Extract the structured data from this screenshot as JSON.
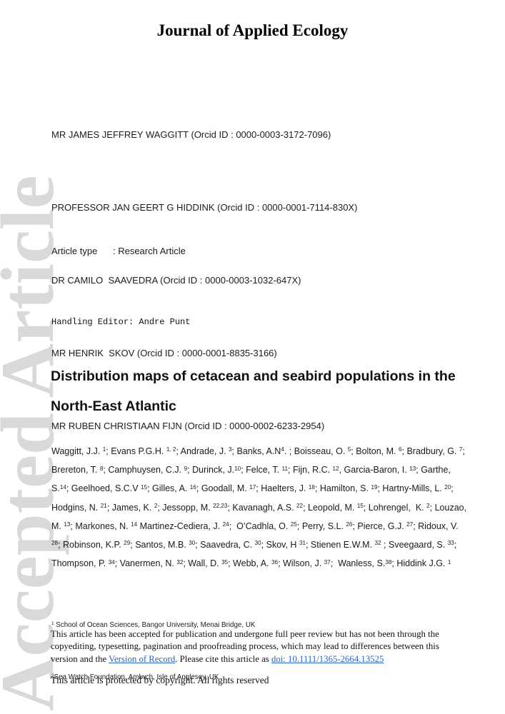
{
  "colors": {
    "link": "#2a64c5",
    "watermark": "#d9d9d9"
  },
  "watermark_text": "Accepted Article",
  "journal_title": "Journal of Applied Ecology",
  "orcid_lines": [
    "MR JAMES JEFFREY WAGGITT (Orcid ID : 0000-0003-3172-7096)",
    "PROFESSOR JAN GEERT G HIDDINK (Orcid ID : 0000-0001-7114-830X)",
    "DR CAMILO  SAAVEDRA (Orcid ID : 0000-0003-1032-647X)",
    "MR HENRIK  SKOV (Orcid ID : 0000-0001-8835-3166)",
    "MR RUBEN CHRISTIAAN FIJN (Orcid ID : 0000-0002-6233-2954)"
  ],
  "meta": {
    "article_type_line": "Article type      : Research Article",
    "handling_editor_line": "Handling Editor: Andre Punt"
  },
  "article": {
    "title": "Distribution maps of cetacean and seabird populations in the North-East Atlantic",
    "authors_segments": [
      {
        "t": "Waggitt, J.J. "
      },
      {
        "sup": "1"
      },
      {
        "t": "; Evans P.G.H. "
      },
      {
        "sup": "1, 2"
      },
      {
        "t": "; Andrade, J. "
      },
      {
        "sup": "3"
      },
      {
        "t": "; Banks, A.N"
      },
      {
        "sup": "4"
      },
      {
        "t": ". ; Boisseau, O. "
      },
      {
        "sup": "5"
      },
      {
        "t": "; Bolton, M. "
      },
      {
        "sup": "6"
      },
      {
        "t": "; Bradbury, G. "
      },
      {
        "sup": "7"
      },
      {
        "t": "; Brereton, T. "
      },
      {
        "sup": "8"
      },
      {
        "t": "; Camphuysen, C.J. "
      },
      {
        "sup": "9"
      },
      {
        "t": "; Durinck, J."
      },
      {
        "sup": "10"
      },
      {
        "t": "; Felce, T. "
      },
      {
        "sup": "11"
      },
      {
        "t": "; Fijn, R.C. "
      },
      {
        "sup": "12"
      },
      {
        "t": ", Garcia-Baron, I. "
      },
      {
        "sup": "13"
      },
      {
        "t": "; Garthe, S."
      },
      {
        "sup": "14"
      },
      {
        "t": "; Geelhoed, S.C.V "
      },
      {
        "sup": "15"
      },
      {
        "t": "; Gilles, A. "
      },
      {
        "sup": "16"
      },
      {
        "t": "; Goodall, M. "
      },
      {
        "sup": "17"
      },
      {
        "t": "; Haelters, J. "
      },
      {
        "sup": "18"
      },
      {
        "t": "; Hamilton, S. "
      },
      {
        "sup": "19"
      },
      {
        "t": "; Hartny-Mills, L. "
      },
      {
        "sup": "20"
      },
      {
        "t": "; Hodgins, N. "
      },
      {
        "sup": "21"
      },
      {
        "t": "; James, K. "
      },
      {
        "sup": "2"
      },
      {
        "t": "; Jessopp, M. "
      },
      {
        "sup": "22,23"
      },
      {
        "t": "; Kavanagh, A.S. "
      },
      {
        "sup": "22"
      },
      {
        "t": "; Leopold, M. "
      },
      {
        "sup": "15"
      },
      {
        "t": "; Lohrengel,  K. "
      },
      {
        "sup": "2"
      },
      {
        "t": "; Louzao, M. "
      },
      {
        "sup": "13"
      },
      {
        "t": "; Markones, N. "
      },
      {
        "sup": "14"
      },
      {
        "t": " Martinez-Cediera, J. "
      },
      {
        "sup": "24"
      },
      {
        "t": ";  O’Cadhla, O. "
      },
      {
        "sup": "25"
      },
      {
        "t": "; Perry, S.L. "
      },
      {
        "sup": "26"
      },
      {
        "t": "; Pierce, G.J. "
      },
      {
        "sup": "27"
      },
      {
        "t": "; Ridoux, V. "
      },
      {
        "sup": "28"
      },
      {
        "t": "; Robinson, K.P. "
      },
      {
        "sup": "29"
      },
      {
        "t": "; Santos, M.B. "
      },
      {
        "sup": "30"
      },
      {
        "t": "; Saavedra, C. "
      },
      {
        "sup": "30"
      },
      {
        "t": "; Skov, H "
      },
      {
        "sup": "31"
      },
      {
        "t": "; Stienen E.W.M. "
      },
      {
        "sup": "32"
      },
      {
        "t": " ; Sveegaard, S. "
      },
      {
        "sup": "33"
      },
      {
        "t": "; Thompson, P. "
      },
      {
        "sup": "34"
      },
      {
        "t": "; Vanermen, N. "
      },
      {
        "sup": "32"
      },
      {
        "t": "; Wall, D. "
      },
      {
        "sup": "35"
      },
      {
        "t": "; Webb, A. "
      },
      {
        "sup": "36"
      },
      {
        "t": "; Wilson, J. "
      },
      {
        "sup": "37"
      },
      {
        "t": ";  Wanless, S."
      },
      {
        "sup": "38"
      },
      {
        "t": "; Hiddink J.G. "
      },
      {
        "sup": "1"
      }
    ],
    "affiliations": [
      [
        {
          "sup": "1"
        },
        {
          "t": " School of Ocean Sciences, Bangor University, Menai Bridge, UK"
        }
      ],
      [
        {
          "sup": "2"
        },
        {
          "t": "Sea Watch Foundation, Amlwch, Isle of Anglesey, UK"
        }
      ]
    ]
  },
  "footer": {
    "acceptance_segments": [
      {
        "t": "This article has been accepted for publication and undergone full peer review but has not been through the copyediting, typesetting, pagination and proofreading process, which may lead to differences between this version and the "
      },
      {
        "t": "Version of Record",
        "link": true
      },
      {
        "t": ". Please cite this article as "
      },
      {
        "t": "doi: 10.1111/1365-2664.13525",
        "link": true
      }
    ],
    "copyright": "This article is protected by copyright. All rights reserved"
  }
}
